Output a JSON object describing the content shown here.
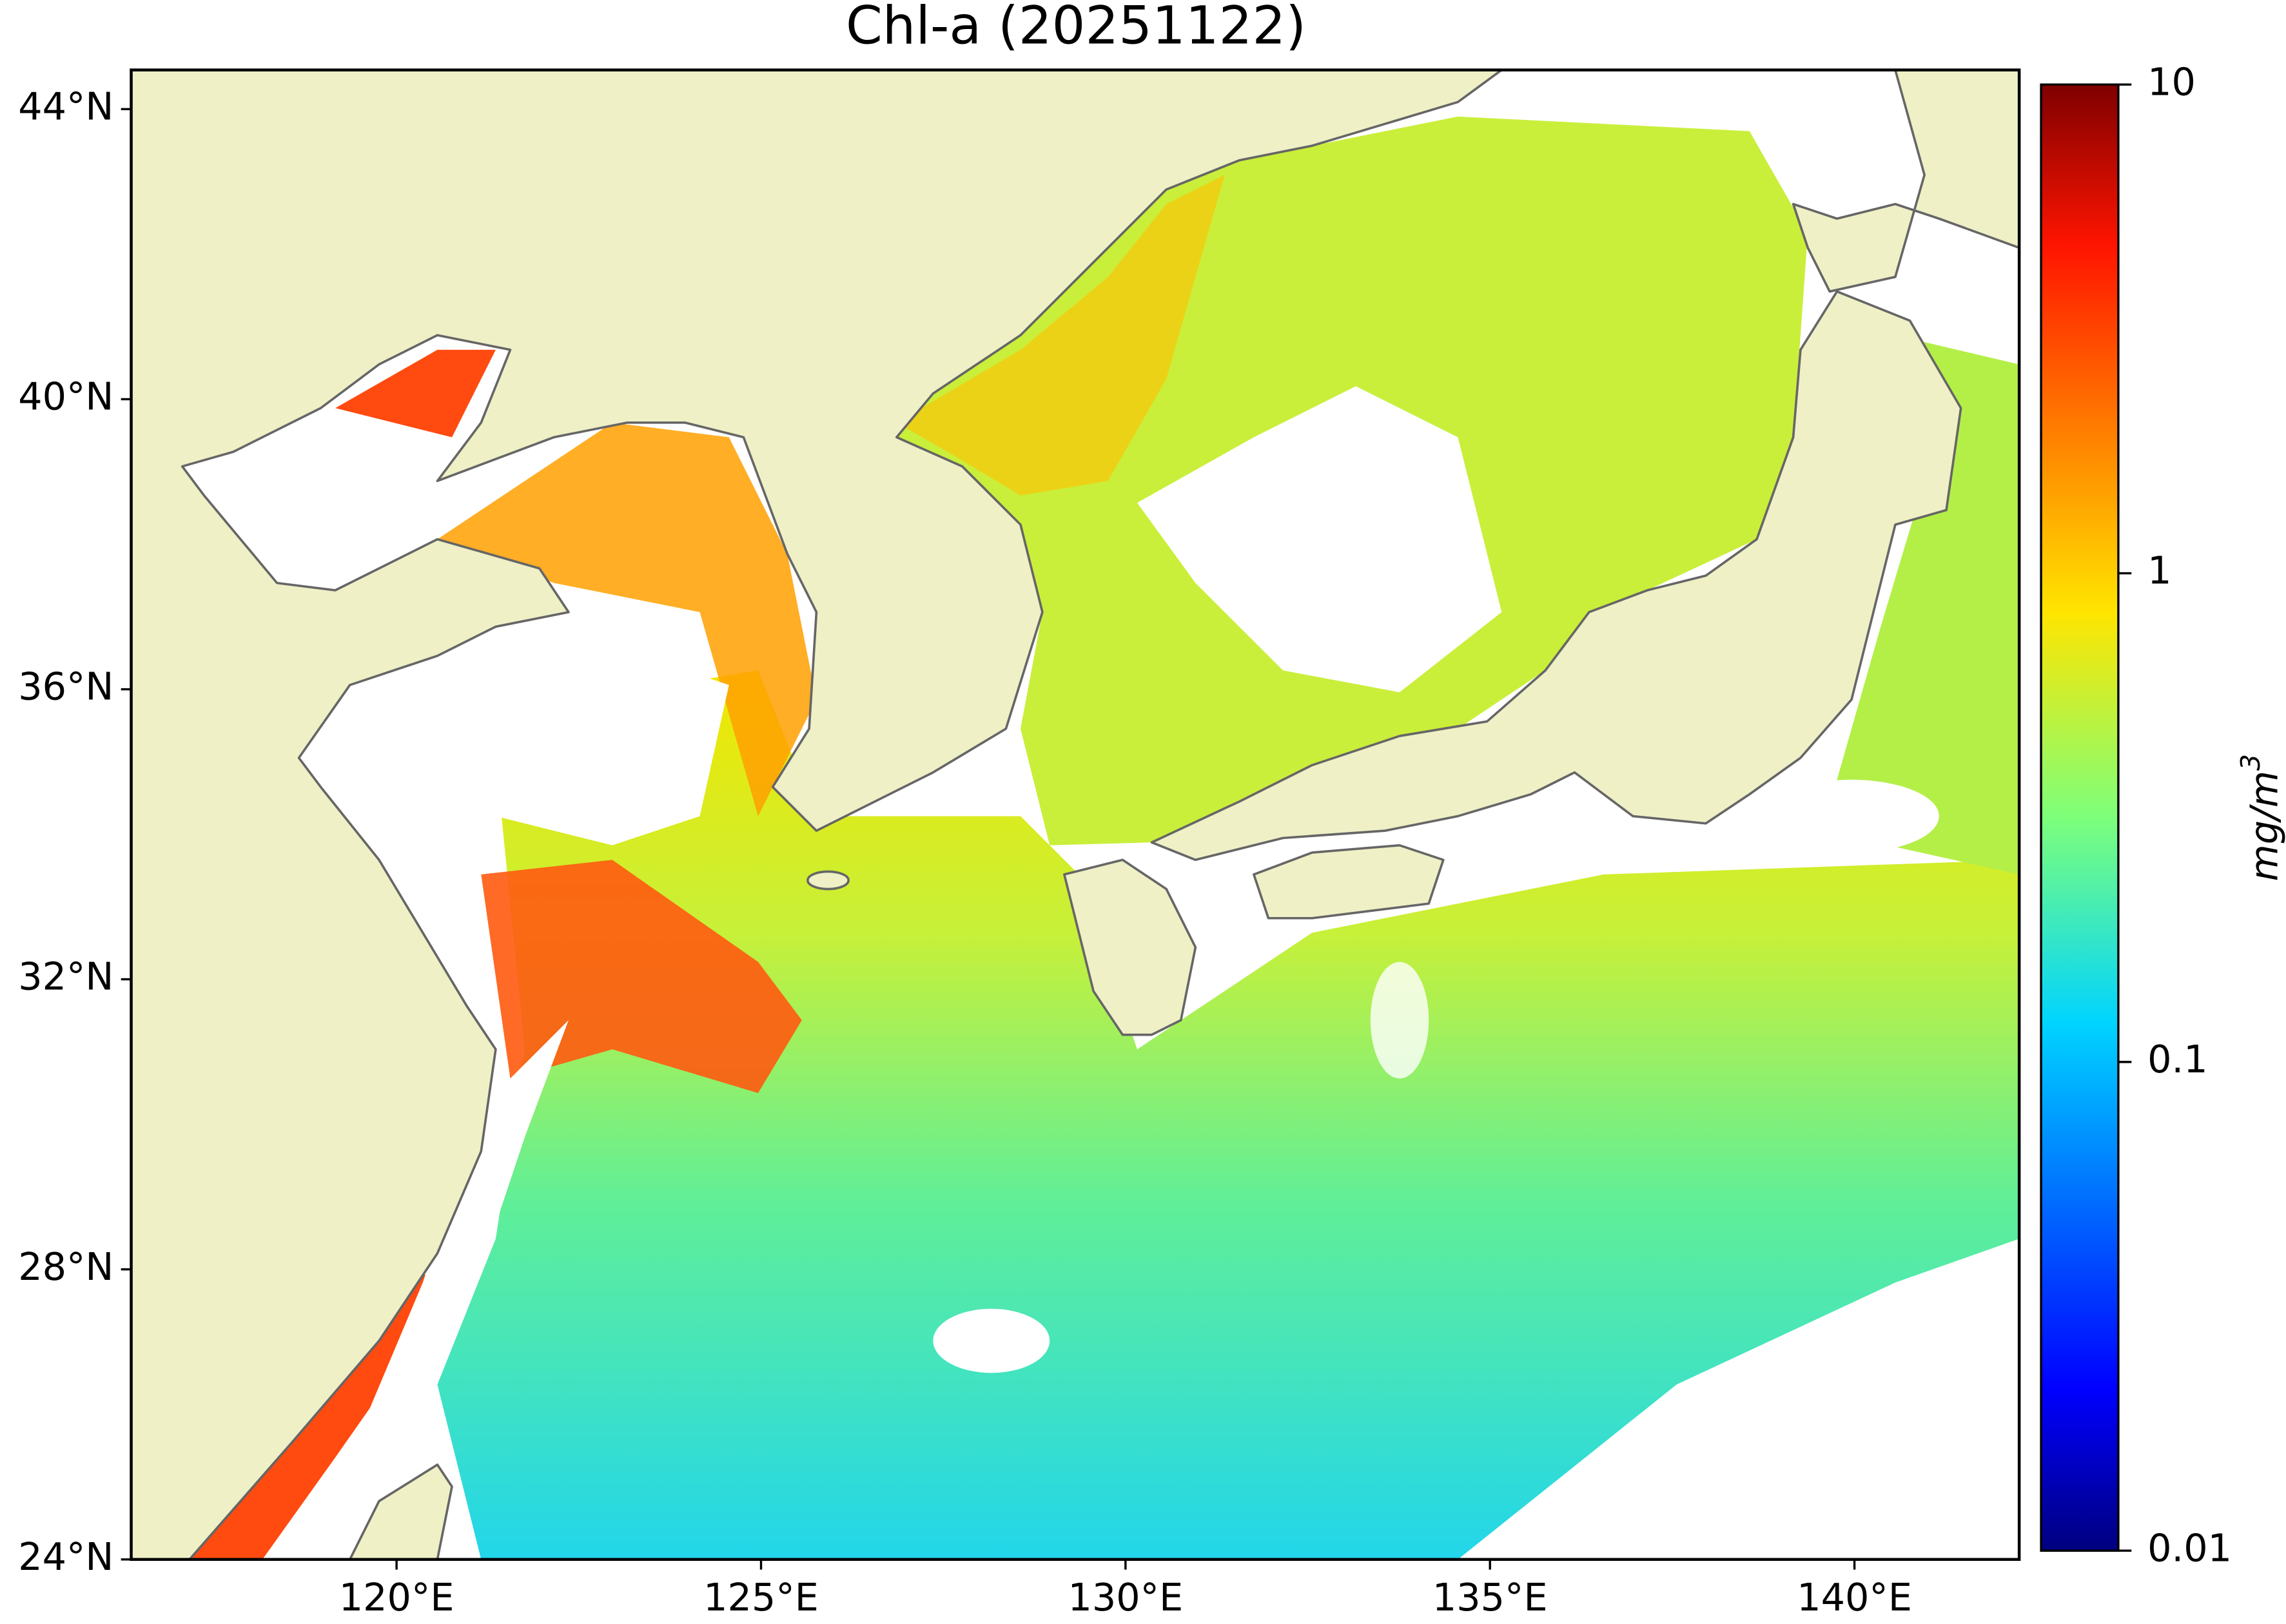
{
  "map": {
    "title": "Chl-a (20251122)",
    "xlim": [
      116.36,
      142.26
    ],
    "ylim": [
      24,
      44.54
    ],
    "xticks": [
      {
        "value": 120,
        "label": "120°E"
      },
      {
        "value": 125,
        "label": "125°E"
      },
      {
        "value": 130,
        "label": "130°E"
      },
      {
        "value": 135,
        "label": "135°E"
      },
      {
        "value": 140,
        "label": "140°E"
      }
    ],
    "yticks": [
      {
        "value": 24,
        "label": "24°N"
      },
      {
        "value": 28,
        "label": "28°N"
      },
      {
        "value": 32,
        "label": "32°N"
      },
      {
        "value": 36,
        "label": "36°N"
      },
      {
        "value": 40,
        "label": "40°N"
      },
      {
        "value": 44,
        "label": "44°N"
      }
    ],
    "colorbar": {
      "label": "mg/m",
      "label_superscript": "3",
      "scale": "log",
      "lim": [
        0.01,
        10
      ],
      "ticks": [
        0.01,
        0.1,
        1,
        10
      ]
    }
  }
}
